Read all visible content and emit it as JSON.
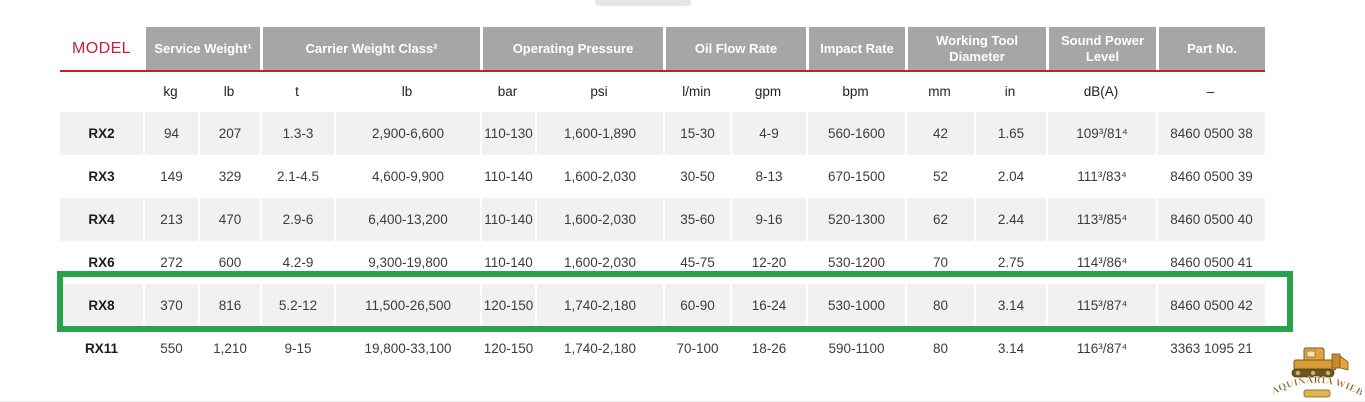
{
  "table": {
    "model_header": "MODEL",
    "group_headers": [
      {
        "label": "Service Weight¹",
        "span": 2
      },
      {
        "label": "Carrier Weight Class²",
        "span": 2
      },
      {
        "label": "Operating Pressure",
        "span": 2
      },
      {
        "label": "Oil Flow Rate",
        "span": 2
      },
      {
        "label": "Impact Rate",
        "span": 1
      },
      {
        "label": "Working Tool Diameter",
        "span": 2
      },
      {
        "label": "Sound Power Level",
        "span": 1
      },
      {
        "label": "Part No.",
        "span": 1
      }
    ],
    "units": [
      "kg",
      "lb",
      "t",
      "lb",
      "bar",
      "psi",
      "l/min",
      "gpm",
      "bpm",
      "mm",
      "in",
      "dB(A)",
      "–"
    ],
    "rows": [
      {
        "model": "RX2",
        "highlighted": false,
        "values": [
          "94",
          "207",
          "1.3-3",
          "2,900-6,600",
          "110-130",
          "1,600-1,890",
          "15-30",
          "4-9",
          "560-1600",
          "42",
          "1.65",
          "109³/81⁴",
          "8460 0500 38"
        ]
      },
      {
        "model": "RX3",
        "highlighted": false,
        "values": [
          "149",
          "329",
          "2.1-4.5",
          "4,600-9,900",
          "110-140",
          "1,600-2,030",
          "30-50",
          "8-13",
          "670-1500",
          "52",
          "2.04",
          "111³/83⁴",
          "8460 0500 39"
        ]
      },
      {
        "model": "RX4",
        "highlighted": false,
        "values": [
          "213",
          "470",
          "2.9-6",
          "6,400-13,200",
          "110-140",
          "1,600-2,030",
          "35-60",
          "9-16",
          "520-1300",
          "62",
          "2.44",
          "113³/85⁴",
          "8460 0500 40"
        ]
      },
      {
        "model": "RX6",
        "highlighted": false,
        "values": [
          "272",
          "600",
          "4.2-9",
          "9,300-19,800",
          "110-140",
          "1,600-2,030",
          "45-75",
          "12-20",
          "530-1200",
          "70",
          "2.75",
          "114³/86⁴",
          "8460 0500 41"
        ]
      },
      {
        "model": "RX8",
        "highlighted": true,
        "values": [
          "370",
          "816",
          "5.2-12",
          "11,500-26,500",
          "120-150",
          "1,740-2,180",
          "60-90",
          "16-24",
          "530-1000",
          "80",
          "3.14",
          "115³/87⁴",
          "8460 0500 42"
        ]
      },
      {
        "model": "RX11",
        "highlighted": false,
        "values": [
          "550",
          "1,210",
          "9-15",
          "19,800-33,100",
          "120-150",
          "1,740-2,180",
          "70-100",
          "18-26",
          "590-1100",
          "80",
          "3.14",
          "116³/87⁴",
          "3363 1095 21"
        ]
      }
    ]
  },
  "highlight": {
    "highlighted_model": "RX8",
    "color": "#2aa24b"
  },
  "colors": {
    "accent_red": "#c32035",
    "header_bg": "#a7a6a6",
    "header_text": "#ffffff",
    "row_stripe": "#f2f1f1",
    "highlight_green": "#2aa24b"
  },
  "watermark": {
    "text": "MAQUINARIA WIEBE"
  }
}
